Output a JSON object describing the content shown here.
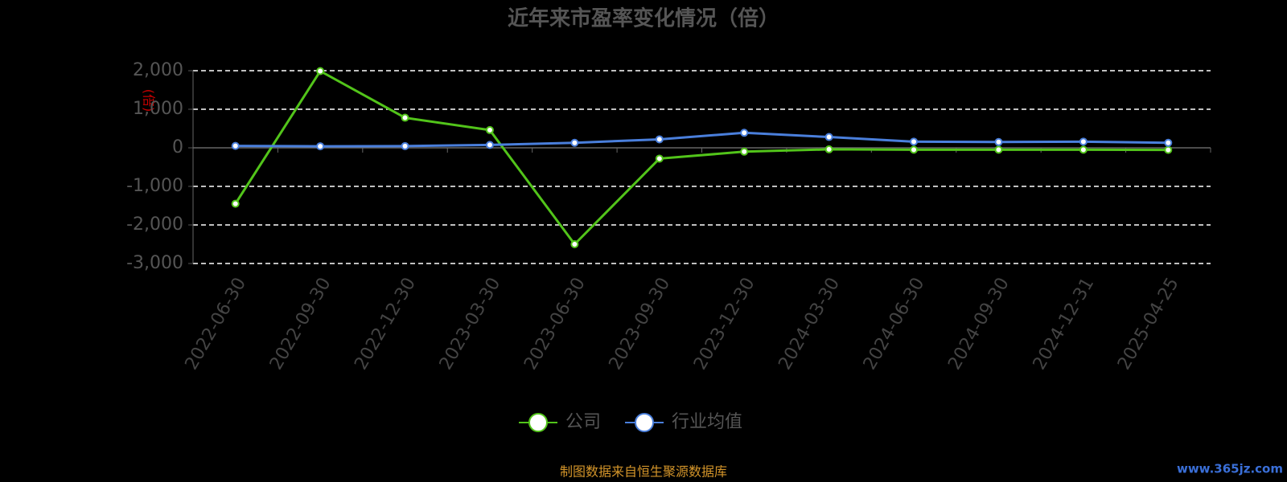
{
  "chart_data": {
    "type": "line",
    "title": "近年来市盈率变化情况（倍）",
    "y_label": "(倍)",
    "categories": [
      "2022-06-30",
      "2022-09-30",
      "2022-12-30",
      "2023-03-30",
      "2023-06-30",
      "2023-09-30",
      "2023-12-30",
      "2024-03-30",
      "2024-06-30",
      "2024-09-30",
      "2024-12-31",
      "2025-04-25"
    ],
    "series": [
      {
        "name": "公司",
        "color": "#52c41a",
        "values": [
          -1450,
          1990,
          780,
          460,
          -2500,
          -280,
          -100,
          -40,
          -50,
          -50,
          -50,
          -55
        ]
      },
      {
        "name": "行业均值",
        "color": "#4a7fdc",
        "values": [
          50,
          40,
          45,
          75,
          130,
          220,
          390,
          280,
          160,
          150,
          160,
          130
        ]
      }
    ],
    "ylim": [
      -3000,
      2000
    ],
    "yticks": [
      {
        "value": -3000,
        "label": "-3,000"
      },
      {
        "value": -2000,
        "label": "-2,000"
      },
      {
        "value": -1000,
        "label": "-1,000"
      },
      0,
      {
        "value": 1000,
        "label": "1,000"
      },
      {
        "value": 2000,
        "label": "2,000"
      }
    ],
    "grid": true,
    "legend": "bottom",
    "source": "制图数据来自恒生聚源数据库",
    "watermark": "www.365jz.com"
  }
}
